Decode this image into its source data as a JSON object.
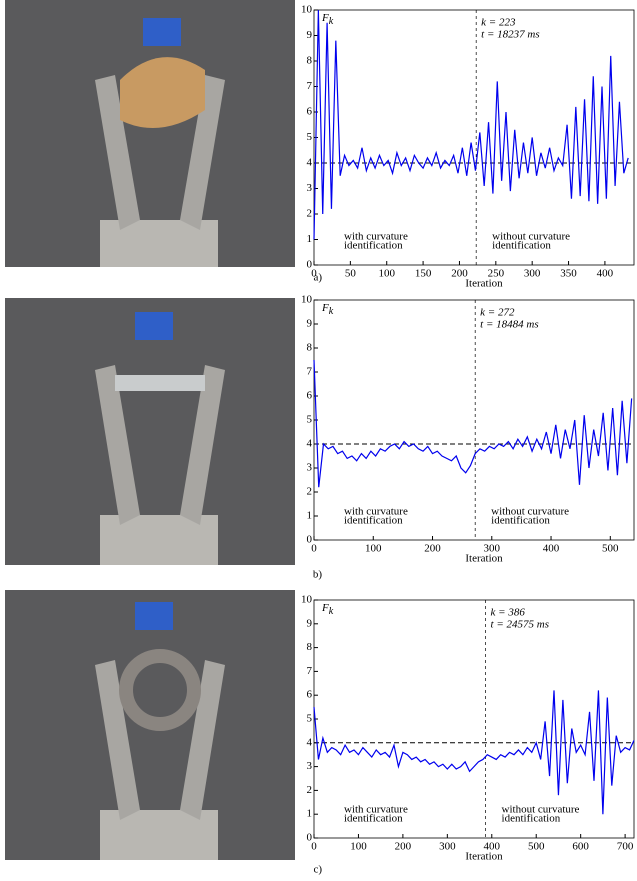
{
  "chart_data": [
    {
      "type": "line",
      "panel_label": "a)",
      "xlabel": "Iteration",
      "ylabel": "F",
      "ylabel_sub": "k",
      "xlim": [
        0,
        440
      ],
      "xticks": [
        0,
        50,
        100,
        150,
        200,
        250,
        300,
        350,
        400
      ],
      "ylim": [
        0,
        10
      ],
      "yticks": [
        0,
        1,
        2,
        3,
        4,
        5,
        6,
        7,
        8,
        9,
        10
      ],
      "reference_y": 4,
      "vline": 223,
      "vline_texts": [
        "k = 223",
        "t = 18237 ms"
      ],
      "region_texts": [
        [
          "with curvature",
          "identification"
        ],
        [
          "without curvature",
          "identification"
        ]
      ],
      "x": [
        0,
        6,
        12,
        18,
        24,
        30,
        36,
        42,
        48,
        54,
        60,
        66,
        72,
        78,
        84,
        90,
        96,
        102,
        108,
        114,
        120,
        126,
        132,
        138,
        144,
        150,
        156,
        162,
        168,
        174,
        180,
        186,
        192,
        198,
        204,
        210,
        216,
        222,
        228,
        234,
        240,
        246,
        252,
        258,
        264,
        270,
        276,
        282,
        288,
        294,
        300,
        306,
        312,
        318,
        324,
        330,
        336,
        342,
        348,
        354,
        360,
        366,
        372,
        378,
        384,
        390,
        396,
        402,
        408,
        414,
        420,
        426,
        432
      ],
      "series": [
        {
          "color": "#0000ee",
          "values": [
            1,
            10,
            2,
            9.5,
            2.2,
            8.8,
            3.5,
            4.3,
            3.9,
            4.1,
            3.8,
            4.6,
            3.7,
            4.2,
            3.8,
            4.3,
            3.9,
            4.1,
            3.6,
            4.4,
            3.9,
            4.2,
            3.7,
            4.3,
            4.0,
            3.8,
            4.2,
            3.9,
            4.4,
            3.8,
            4.1,
            3.9,
            4.3,
            3.6,
            4.6,
            3.5,
            4.8,
            3.7,
            5.2,
            3.1,
            5.6,
            2.8,
            7.2,
            3.3,
            6.0,
            2.9,
            5.3,
            3.4,
            4.8,
            3.6,
            5.0,
            3.5,
            4.4,
            3.8,
            4.6,
            3.7,
            4.2,
            3.9,
            5.5,
            2.6,
            6.2,
            2.7,
            6.5,
            2.5,
            7.4,
            2.4,
            7.0,
            2.6,
            8.2,
            3.1,
            6.4,
            3.6,
            4.2
          ]
        }
      ]
    },
    {
      "type": "line",
      "panel_label": "b)",
      "xlabel": "Iteration",
      "ylabel": "F",
      "ylabel_sub": "k",
      "xlim": [
        0,
        540
      ],
      "xticks": [
        0,
        100,
        200,
        300,
        400,
        500
      ],
      "ylim": [
        0,
        10
      ],
      "yticks": [
        0,
        1,
        2,
        3,
        4,
        5,
        6,
        7,
        8,
        9,
        10
      ],
      "reference_y": 4,
      "vline": 272,
      "vline_texts": [
        "k = 272",
        "t = 18484 ms"
      ],
      "region_texts": [
        [
          "with curvature",
          "identification"
        ],
        [
          "without curvature",
          "identification"
        ]
      ],
      "x": [
        0,
        8,
        16,
        24,
        32,
        40,
        48,
        56,
        64,
        72,
        80,
        88,
        96,
        104,
        112,
        120,
        128,
        136,
        144,
        152,
        160,
        168,
        176,
        184,
        192,
        200,
        208,
        216,
        224,
        232,
        240,
        248,
        256,
        264,
        272,
        280,
        288,
        296,
        304,
        312,
        320,
        328,
        336,
        344,
        352,
        360,
        368,
        376,
        384,
        392,
        400,
        408,
        416,
        424,
        432,
        440,
        448,
        456,
        464,
        472,
        480,
        488,
        496,
        504,
        512,
        520,
        528,
        536
      ],
      "series": [
        {
          "color": "#0000ee",
          "values": [
            7.5,
            2.2,
            4.0,
            3.8,
            3.9,
            3.6,
            3.7,
            3.4,
            3.5,
            3.3,
            3.6,
            3.4,
            3.7,
            3.5,
            3.8,
            3.7,
            3.9,
            4.0,
            3.8,
            4.1,
            3.9,
            4.0,
            3.8,
            3.7,
            3.9,
            3.6,
            3.7,
            3.5,
            3.4,
            3.3,
            3.5,
            3.0,
            2.8,
            3.1,
            3.6,
            3.8,
            3.7,
            3.9,
            3.8,
            4.0,
            3.9,
            4.1,
            3.8,
            4.2,
            3.9,
            4.3,
            3.7,
            4.2,
            3.8,
            4.5,
            3.6,
            4.8,
            3.4,
            4.6,
            3.8,
            5.0,
            2.3,
            5.2,
            3.0,
            4.6,
            3.5,
            5.3,
            2.9,
            5.5,
            2.7,
            5.8,
            3.2,
            5.9
          ]
        }
      ]
    },
    {
      "type": "line",
      "panel_label": "c)",
      "xlabel": "Iteration",
      "ylabel": "F",
      "ylabel_sub": "k",
      "xlim": [
        0,
        720
      ],
      "xticks": [
        0,
        100,
        200,
        300,
        400,
        500,
        600,
        700
      ],
      "ylim": [
        0,
        10
      ],
      "yticks": [
        0,
        1,
        2,
        3,
        4,
        5,
        6,
        7,
        8,
        9,
        10
      ],
      "reference_y": 4,
      "vline": 386,
      "vline_texts": [
        "k = 386",
        "t = 24575 ms"
      ],
      "region_texts": [
        [
          "with curvature",
          "identification"
        ],
        [
          "without curvature",
          "identification"
        ]
      ],
      "x": [
        0,
        10,
        20,
        30,
        40,
        50,
        60,
        70,
        80,
        90,
        100,
        110,
        120,
        130,
        140,
        150,
        160,
        170,
        180,
        190,
        200,
        210,
        220,
        230,
        240,
        250,
        260,
        270,
        280,
        290,
        300,
        310,
        320,
        330,
        340,
        350,
        360,
        370,
        380,
        390,
        400,
        410,
        420,
        430,
        440,
        450,
        460,
        470,
        480,
        490,
        500,
        510,
        520,
        530,
        540,
        550,
        560,
        570,
        580,
        590,
        600,
        610,
        620,
        630,
        640,
        650,
        660,
        670,
        680,
        690,
        700,
        710,
        720
      ],
      "series": [
        {
          "color": "#0000ee",
          "values": [
            5.5,
            3.3,
            4.2,
            3.6,
            3.8,
            3.7,
            3.5,
            3.9,
            3.6,
            3.7,
            3.5,
            3.8,
            3.6,
            3.4,
            3.7,
            3.5,
            3.6,
            3.4,
            3.9,
            3.0,
            3.6,
            3.5,
            3.3,
            3.4,
            3.2,
            3.3,
            3.1,
            3.2,
            3.0,
            3.1,
            2.9,
            3.1,
            2.9,
            3.0,
            3.2,
            2.8,
            3.0,
            3.2,
            3.3,
            3.5,
            3.4,
            3.3,
            3.5,
            3.4,
            3.6,
            3.5,
            3.7,
            3.5,
            3.8,
            3.6,
            4.0,
            3.3,
            4.9,
            2.6,
            6.2,
            1.8,
            5.8,
            2.3,
            4.6,
            3.6,
            3.9,
            3.5,
            5.3,
            2.4,
            6.2,
            1.0,
            5.9,
            2.2,
            4.3,
            3.6,
            3.8,
            3.7,
            4.1
          ]
        }
      ]
    }
  ]
}
